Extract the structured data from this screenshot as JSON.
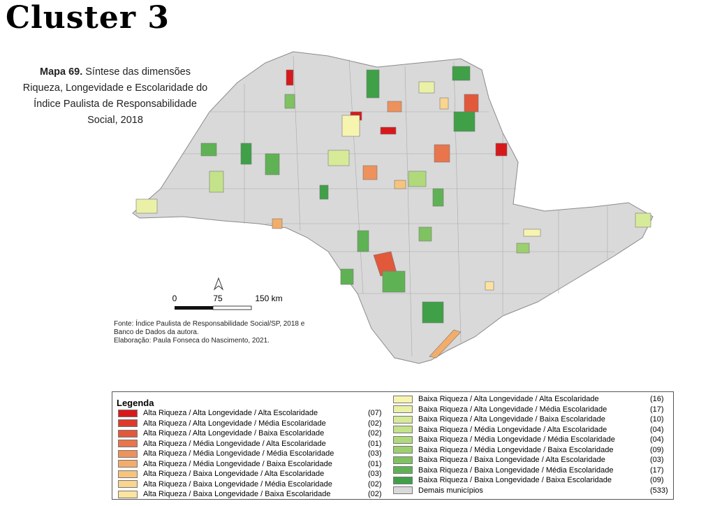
{
  "title": "Cluster 3",
  "caption": {
    "label": "Mapa 69.",
    "lines": [
      "Síntese das dimensões",
      "Riqueza, Longevidade e Escolaridade do",
      "Índice Paulista de Responsabilidade",
      "Social, 2018"
    ]
  },
  "scale": {
    "labels": [
      "0",
      "75",
      "150 km"
    ]
  },
  "source": [
    "Fonte: Índice Paulista de Responsabilidade Social/SP, 2018 e",
    "Banco de Dados da autora.",
    "Elaboração: Paula Fonseca do Nascimento, 2021."
  ],
  "legend": {
    "title": "Legenda",
    "left": [
      {
        "label": "Alta Riqueza / Alta Longevidade / Alta Escolaridade",
        "count": "(07)",
        "color": "#d7191c"
      },
      {
        "label": "Alta Riqueza / Alta Longevidade / Média Escolaridade",
        "count": "(02)",
        "color": "#dc3b2b"
      },
      {
        "label": "Alta Riqueza / Alta Longevidade / Baixa Escolaridade",
        "count": "(02)",
        "color": "#e2583b"
      },
      {
        "label": "Alta Riqueza / Média Longevidade / Alta Escolaridade",
        "count": "(01)",
        "color": "#e8754b"
      },
      {
        "label": "Alta Riqueza / Média Longevidade / Média Escolaridade",
        "count": "(03)",
        "color": "#ee915b"
      },
      {
        "label": "Alta Riqueza / Média Longevidade / Baixa Escolaridade",
        "count": "(01)",
        "color": "#f2ad6b"
      },
      {
        "label": "Alta Riqueza / Baixa Longevidade / Alta Escolaridade",
        "count": "(03)",
        "color": "#f6c47c"
      },
      {
        "label": "Alta Riqueza / Baixa Longevidade / Média Escolaridade",
        "count": "(02)",
        "color": "#f9d58e"
      },
      {
        "label": "Alta Riqueza / Baixa Longevidade / Baixa Escolaridade",
        "count": "(02)",
        "color": "#fce3a0"
      }
    ],
    "right": [
      {
        "label": "Baixa Riqueza / Alta Longevidade / Alta Escolaridade",
        "count": "(16)",
        "color": "#f7f4b0"
      },
      {
        "label": "Baixa Riqueza / Alta Longevidade / Média Escolaridade",
        "count": "(17)",
        "color": "#eaf1a6"
      },
      {
        "label": "Baixa Riqueza / Alta Longevidade / Baixa Escolaridade",
        "count": "(10)",
        "color": "#d7ea98"
      },
      {
        "label": "Baixa Riqueza / Média Longevidade / Alta Escolaridade",
        "count": "(04)",
        "color": "#c4e28a"
      },
      {
        "label": "Baixa Riqueza / Média Longevidade / Média Escolaridade",
        "count": "(04)",
        "color": "#b0d97c"
      },
      {
        "label": "Baixa Riqueza / Média Longevidade / Baixa Escolaridade",
        "count": "(09)",
        "color": "#9ccf6e"
      },
      {
        "label": "Baixa Riqueza / Baixa Longevidade / Alta Escolaridade",
        "count": "(03)",
        "color": "#7fc261"
      },
      {
        "label": "Baixa Riqueza / Baixa Longevidade / Média Escolaridade",
        "count": "(17)",
        "color": "#5fb254"
      },
      {
        "label": "Baixa Riqueza / Baixa Longevidade / Baixa Escolaridade",
        "count": "(09)",
        "color": "#3fa048"
      },
      {
        "label": "Demais municípios",
        "count": "(533)",
        "color": "#d9d9d9"
      }
    ]
  }
}
